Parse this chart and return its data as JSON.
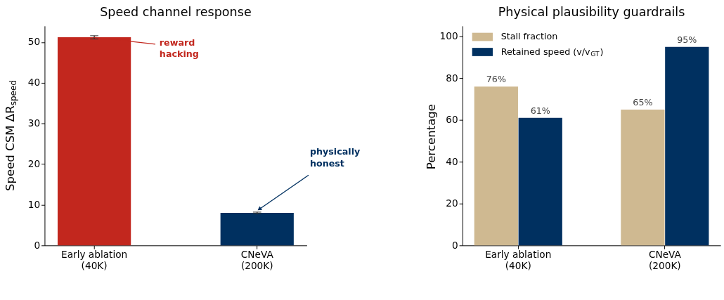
{
  "chart_data": [
    {
      "type": "bar",
      "title": "Speed channel response",
      "ylabel": "Speed CSM ΔR$_{speed}$",
      "categories": [
        "Early ablation\n(40K)",
        "CNeVA\n(200K)"
      ],
      "values": [
        51.2,
        8.0
      ],
      "errors": [
        0.4,
        0.2
      ],
      "colors": [
        "#c2271e",
        "#003060"
      ],
      "ylim": [
        0,
        54
      ],
      "yticks": [
        0,
        10,
        20,
        30,
        40,
        50
      ],
      "grid": false,
      "annotations": [
        {
          "text": "reward hacking",
          "x": "Early ablation\n(40K)",
          "y": 51.2
        },
        {
          "text": "physically honest",
          "x": "CNeVA\n(200K)",
          "y": 8.0
        }
      ]
    },
    {
      "type": "bar",
      "title": "Physical plausibility guardrails",
      "ylabel": "Percentage",
      "categories": [
        "Early ablation\n(40K)",
        "CNeVA\n(200K)"
      ],
      "series": [
        {
          "name": "Stall fraction",
          "color": "#cfb991",
          "values": [
            76,
            65
          ],
          "value_labels": [
            "76%",
            "65%"
          ]
        },
        {
          "name": "Retained speed (v/v$_{GT}$)",
          "color": "#003060",
          "values": [
            61,
            95
          ],
          "value_labels": [
            "61%",
            "95%"
          ]
        }
      ],
      "ylim": [
        0,
        105
      ],
      "yticks": [
        0,
        20,
        40,
        60,
        80,
        100
      ],
      "grid": false,
      "legend": "top left"
    }
  ]
}
